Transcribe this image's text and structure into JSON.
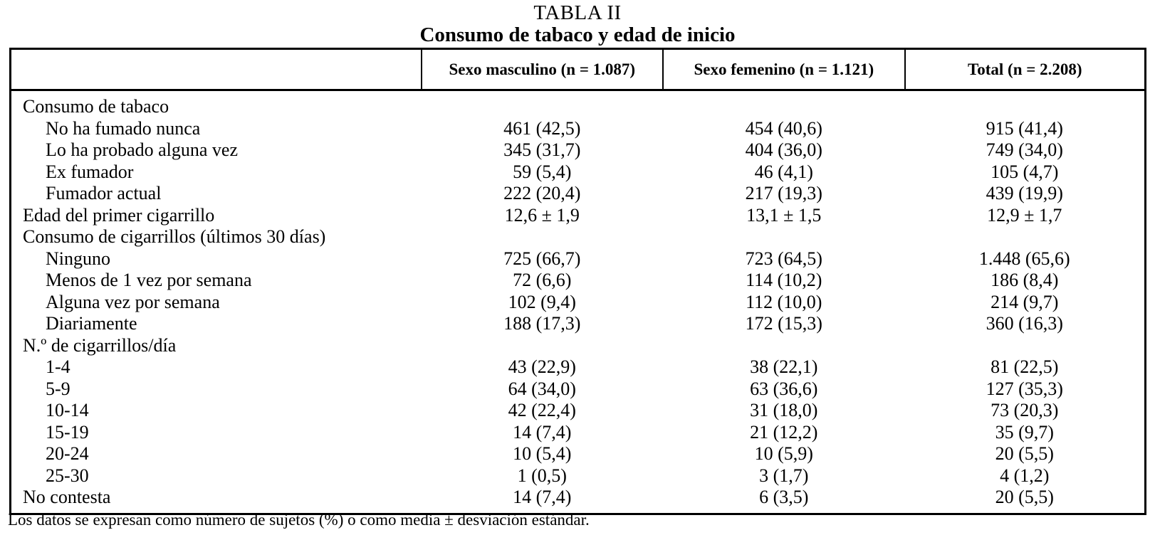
{
  "page": {
    "title": "TABLA II",
    "subtitle": "Consumo de tabaco y edad de inicio",
    "footnote": "Los datos se expresan como número de sujetos (%) o como media ± desviación estándar."
  },
  "table": {
    "columns": [
      "",
      "Sexo masculino (n = 1.087)",
      "Sexo femenino (n = 1.121)",
      "Total (n = 2.208)"
    ],
    "rows": [
      {
        "label": "Consumo de tabaco",
        "indent": 0,
        "male": "",
        "female": "",
        "total": ""
      },
      {
        "label": "No ha fumado nunca",
        "indent": 1,
        "male": "461 (42,5)",
        "female": "454 (40,6)",
        "total": "915 (41,4)"
      },
      {
        "label": "Lo ha probado alguna vez",
        "indent": 1,
        "male": "345 (31,7)",
        "female": "404 (36,0)",
        "total": "749 (34,0)"
      },
      {
        "label": "Ex fumador",
        "indent": 1,
        "male": "59 (5,4)",
        "female": "46 (4,1)",
        "total": "105 (4,7)"
      },
      {
        "label": "Fumador actual",
        "indent": 1,
        "male": "222 (20,4)",
        "female": "217 (19,3)",
        "total": "439 (19,9)"
      },
      {
        "label": "Edad del primer cigarrillo",
        "indent": 0,
        "male": "12,6 ± 1,9",
        "female": "13,1 ± 1,5",
        "total": "12,9 ± 1,7"
      },
      {
        "label": "Consumo de cigarrillos (últimos 30 días)",
        "indent": 0,
        "male": "",
        "female": "",
        "total": ""
      },
      {
        "label": "Ninguno",
        "indent": 1,
        "male": "725 (66,7)",
        "female": "723 (64,5)",
        "total": "1.448 (65,6)"
      },
      {
        "label": "Menos de 1 vez por semana",
        "indent": 1,
        "male": "72 (6,6)",
        "female": "114 (10,2)",
        "total": "186 (8,4)"
      },
      {
        "label": "Alguna vez por semana",
        "indent": 1,
        "male": "102 (9,4)",
        "female": "112 (10,0)",
        "total": "214 (9,7)"
      },
      {
        "label": "Diariamente",
        "indent": 1,
        "male": "188 (17,3)",
        "female": "172 (15,3)",
        "total": "360 (16,3)"
      },
      {
        "label": "N.º de cigarrillos/día",
        "indent": 0,
        "male": "",
        "female": "",
        "total": ""
      },
      {
        "label": "1-4",
        "indent": 1,
        "male": "43 (22,9)",
        "female": "38 (22,1)",
        "total": "81 (22,5)"
      },
      {
        "label": "5-9",
        "indent": 1,
        "male": "64 (34,0)",
        "female": "63 (36,6)",
        "total": "127 (35,3)"
      },
      {
        "label": "10-14",
        "indent": 1,
        "male": "42 (22,4)",
        "female": "31 (18,0)",
        "total": "73 (20,3)"
      },
      {
        "label": "15-19",
        "indent": 1,
        "male": "14 (7,4)",
        "female": "21 (12,2)",
        "total": "35 (9,7)"
      },
      {
        "label": "20-24",
        "indent": 1,
        "male": "10 (5,4)",
        "female": "10 (5,9)",
        "total": "20 (5,5)"
      },
      {
        "label": "25-30",
        "indent": 1,
        "male": "1 (0,5)",
        "female": "3 (1,7)",
        "total": "4 (1,2)"
      },
      {
        "label": "No contesta",
        "indent": 0,
        "male": "14 (7,4)",
        "female": "6 (3,5)",
        "total": "20 (5,5)"
      }
    ]
  }
}
